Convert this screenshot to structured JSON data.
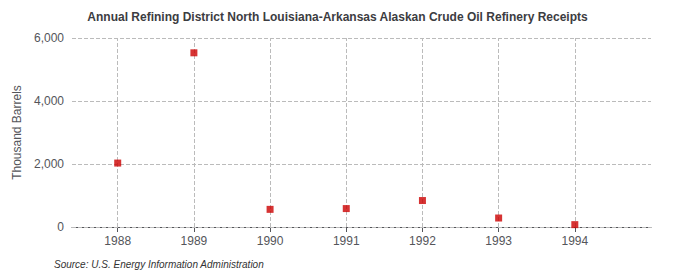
{
  "chart_data": {
    "type": "scatter",
    "title": "Annual Refining District North Louisiana-Arkansas Alaskan Crude Oil Refinery Receipts",
    "ylabel": "Thousand Barrels",
    "annotation": "Source: U.S. Energy Information Administration",
    "x": [
      1988,
      1989,
      1990,
      1991,
      1992,
      1993,
      1994
    ],
    "values": [
      2030,
      5530,
      560,
      585,
      840,
      285,
      75
    ],
    "color": "#cc0000",
    "marker": "square",
    "xlim": [
      1987.4,
      1995.0
    ],
    "ylim": [
      0,
      6000
    ],
    "xticks": [
      1988,
      1989,
      1990,
      1991,
      1992,
      1993,
      1994
    ],
    "yticks": [
      0,
      {
        "value": 2000,
        "label": "2,000"
      },
      {
        "value": 4000,
        "label": "4,000"
      },
      {
        "value": 6000,
        "label": "6,000"
      }
    ],
    "grid": true
  }
}
